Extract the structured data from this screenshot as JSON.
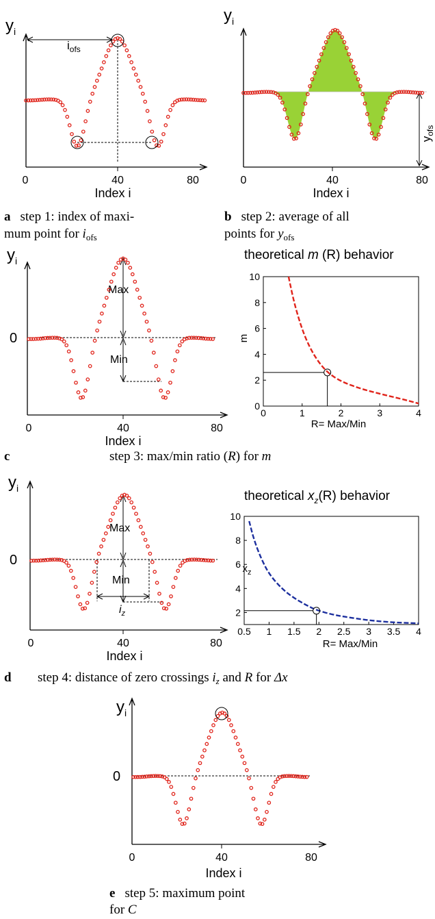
{
  "colors": {
    "points": "#e0241b",
    "fill_area": "#99d236",
    "m_curve": "#e0241b",
    "xz_curve": "#1c2f9e"
  },
  "chart_data": [
    {
      "id": "a",
      "type": "scatter",
      "ylabel": "y_i",
      "xlabel": "Index i",
      "xticks": [
        "0",
        "40",
        "80"
      ],
      "annotations": [
        "i_ofs"
      ],
      "caption": {
        "letter": "a",
        "line1": "step 1: index of maxi-",
        "line2": "mum point for ",
        "var": "i",
        "sub": "ofs"
      },
      "x_range": [
        0,
        80
      ],
      "y_range": [
        -0.85,
        1.1
      ],
      "series": {
        "x_start": 0,
        "x_end": 80,
        "step": 1
      }
    },
    {
      "id": "b",
      "type": "scatter",
      "ylabel": "y_i",
      "xlabel": "Index i",
      "xticks": [
        "0",
        "40",
        "80"
      ],
      "annotations": [
        "y_ofs"
      ],
      "caption": {
        "letter": "b",
        "line1": "step 2: average of all",
        "line2": "points for ",
        "var": "y",
        "sub": "ofs"
      },
      "x_range": [
        0,
        80
      ],
      "y_range": [
        -0.85,
        1.1
      ]
    },
    {
      "id": "c",
      "type": "scatter",
      "ylabel": "y_i",
      "xlabel": "Index i",
      "y_zero_label": "0",
      "xticks": [
        "0",
        "40",
        "80"
      ],
      "annotations": [
        "Max",
        "Min"
      ],
      "caption": {
        "letter": "c",
        "text": "step 3: max/min ratio (",
        "var": "R",
        "text2": ") for ",
        "var2": "m"
      }
    },
    {
      "id": "c-inset",
      "type": "line",
      "title": "theoretical m (R) behavior",
      "title_parts": {
        "pre": "theoretical ",
        "var": "m",
        "post": " (R) behavior"
      },
      "xlabel": "R= Max/Min",
      "ylabel": "m",
      "xlim": [
        0,
        4
      ],
      "ylim": [
        0,
        10
      ],
      "xticks": [
        0,
        1,
        2,
        3,
        4
      ],
      "yticks": [
        0,
        2,
        4,
        6,
        8,
        10
      ],
      "curve_points": [
        [
          0.65,
          10
        ],
        [
          0.8,
          7.9
        ],
        [
          1.0,
          5.9
        ],
        [
          1.2,
          4.5
        ],
        [
          1.4,
          3.5
        ],
        [
          1.65,
          2.6
        ],
        [
          2.0,
          1.9
        ],
        [
          2.5,
          1.35
        ],
        [
          3.0,
          0.95
        ],
        [
          3.5,
          0.6
        ],
        [
          4.0,
          0.2
        ]
      ],
      "marker": {
        "x": 1.65,
        "y": 2.6
      }
    },
    {
      "id": "d",
      "type": "scatter",
      "ylabel": "y_i",
      "xlabel": "Index i",
      "y_zero_label": "0",
      "xticks": [
        "0",
        "40",
        "80"
      ],
      "annotations": [
        "Max",
        "Min",
        "i_z"
      ],
      "caption": {
        "letter": "d",
        "text": "step 4: distance of zero crossings ",
        "var": "i",
        "sub": "z",
        "text2": " and ",
        "var2": "R",
        "text3": " for ",
        "var3": "Δx"
      }
    },
    {
      "id": "d-inset",
      "type": "line",
      "title_parts": {
        "pre": "theoretical ",
        "var": "x",
        "sub": "z",
        "post": "(R) behavior"
      },
      "xlabel": "R= Max/Min",
      "ylabel": "x_z",
      "xlim": [
        0.5,
        4
      ],
      "ylim": [
        1,
        10
      ],
      "xticks": [
        "0.5",
        "1",
        "1.5",
        "2",
        "2.5",
        "3",
        "3.5",
        "4"
      ],
      "yticks": [
        2,
        4,
        6,
        8,
        10
      ],
      "curve_points": [
        [
          0.6,
          9.6
        ],
        [
          0.7,
          8.0
        ],
        [
          0.85,
          6.4
        ],
        [
          1.0,
          5.2
        ],
        [
          1.25,
          4.0
        ],
        [
          1.5,
          3.2
        ],
        [
          1.75,
          2.6
        ],
        [
          1.95,
          2.2
        ],
        [
          2.25,
          1.85
        ],
        [
          2.5,
          1.65
        ],
        [
          3.0,
          1.35
        ],
        [
          3.5,
          1.17
        ],
        [
          4.0,
          1.1
        ]
      ],
      "marker": {
        "x": 1.95,
        "y": 2.15
      }
    },
    {
      "id": "e",
      "type": "scatter",
      "ylabel": "y_i",
      "xlabel": "Index i",
      "y_zero_label": "0",
      "xticks": [
        "0",
        "40",
        "80"
      ],
      "caption": {
        "letter": "e",
        "line1": "step 5: maximum point",
        "line2": "for ",
        "var": "C"
      }
    }
  ]
}
